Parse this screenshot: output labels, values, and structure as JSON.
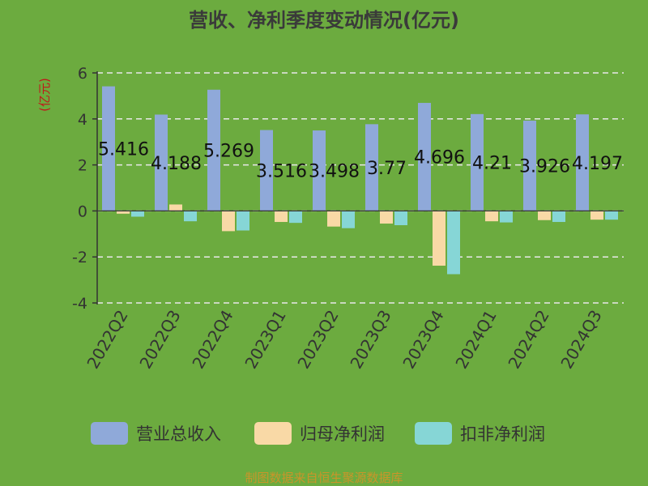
{
  "chart_data": {
    "type": "bar",
    "title": "营收、净利季度变动情况(亿元)",
    "unit_label": "(亿元)",
    "categories": [
      "2022Q2",
      "2022Q3",
      "2022Q4",
      "2023Q1",
      "2023Q2",
      "2023Q3",
      "2023Q4",
      "2024Q1",
      "2024Q2",
      "2024Q3"
    ],
    "series": [
      {
        "name": "营业总收入",
        "color": "#8fa9d9",
        "values": [
          5.416,
          4.188,
          5.269,
          3.516,
          3.498,
          3.77,
          4.696,
          4.21,
          3.926,
          4.197
        ]
      },
      {
        "name": "归母净利润",
        "color": "#f9d9a6",
        "values": [
          -0.12,
          0.28,
          -0.88,
          -0.48,
          -0.68,
          -0.55,
          -2.38,
          -0.45,
          -0.4,
          -0.38
        ]
      },
      {
        "name": "扣非净利润",
        "color": "#86d6d6",
        "values": [
          -0.25,
          -0.45,
          -0.85,
          -0.52,
          -0.75,
          -0.62,
          -2.75,
          -0.5,
          -0.48,
          -0.38
        ]
      }
    ],
    "data_labels": [
      "5.416",
      "4.188",
      "5.269",
      "3.516",
      "3.498",
      "3.77",
      "4.696",
      "4.21",
      "3.926",
      "4.197"
    ],
    "ylim": [
      -4,
      6
    ],
    "yticks": [
      "6",
      "4",
      "2",
      "0",
      "-2",
      "-4"
    ],
    "grid": true,
    "legend_position": "bottom"
  },
  "source": "制图数据来自恒生聚源数据库"
}
